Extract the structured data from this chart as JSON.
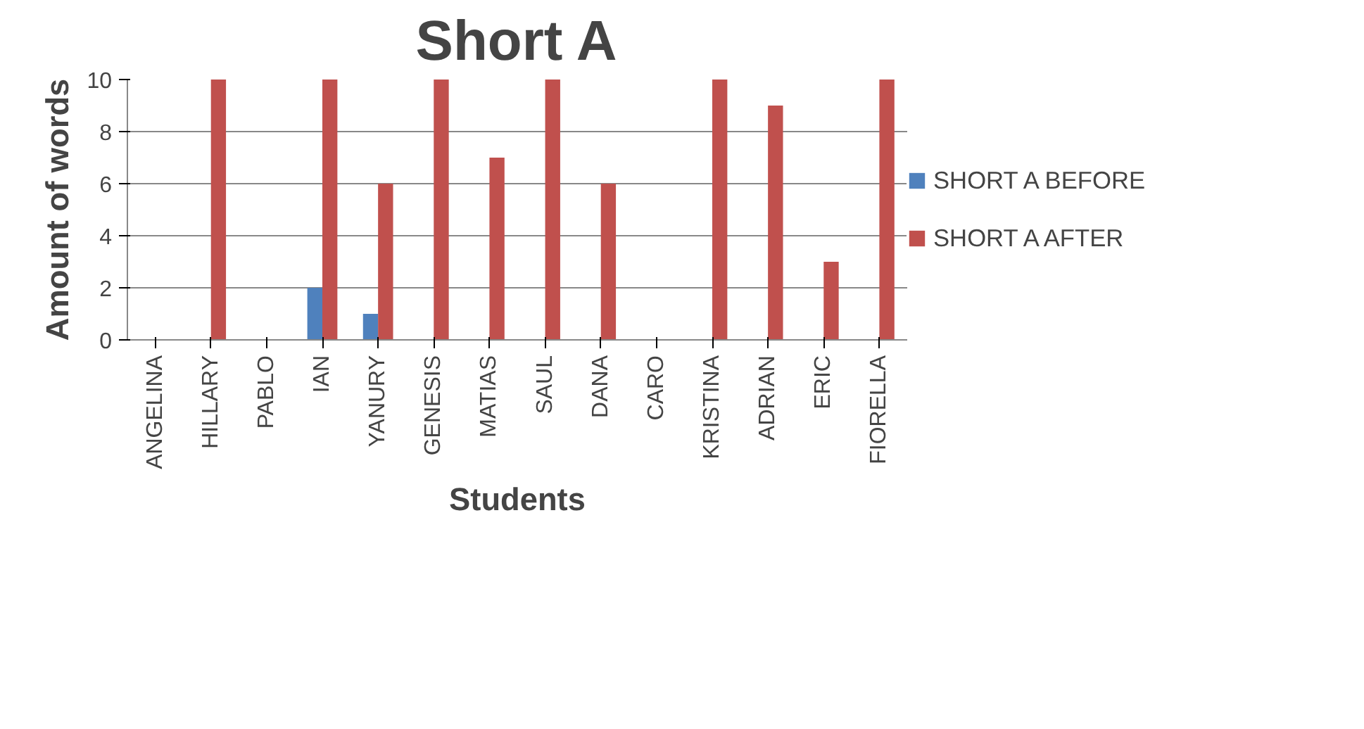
{
  "chart_data": {
    "type": "bar",
    "title": "Short A",
    "xlabel": "Students",
    "ylabel": "Amount of words",
    "categories": [
      "ANGELINA",
      "HILLARY",
      "PABLO",
      "IAN",
      "YANURY",
      "GENESIS",
      "MATIAS",
      "SAUL",
      "DANA",
      "CARO",
      "KRISTINA",
      "ADRIAN",
      "ERIC",
      "FIORELLA"
    ],
    "series": [
      {
        "name": "SHORT A BEFORE",
        "color": "#4f81bd",
        "values": [
          0,
          0,
          0,
          2,
          1,
          0,
          0,
          0,
          0,
          0,
          0,
          0,
          0,
          0
        ]
      },
      {
        "name": "SHORT A AFTER",
        "color": "#c0504d",
        "values": [
          0,
          10,
          0,
          10,
          6,
          10,
          7,
          10,
          6,
          0,
          10,
          9,
          3,
          10
        ]
      }
    ],
    "ylim": [
      0,
      10
    ],
    "yticks": [
      0,
      2,
      4,
      6,
      8,
      10
    ],
    "grid": "y",
    "legend": "right"
  }
}
